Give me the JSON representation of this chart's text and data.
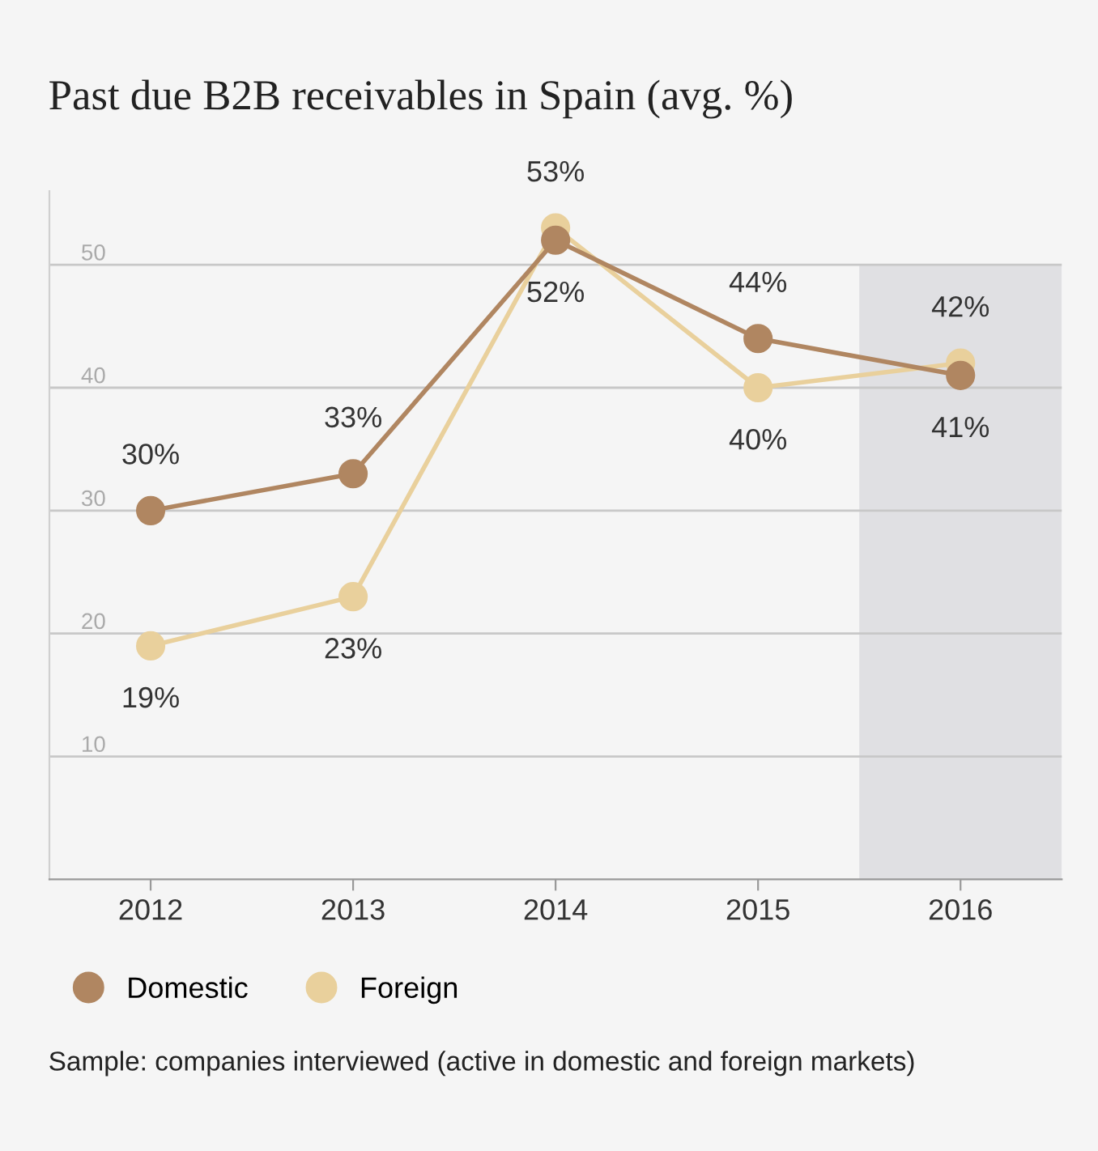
{
  "chart_data": {
    "type": "line",
    "title": "Past due B2B receivables in Spain (avg. %)",
    "x": [
      2012,
      2013,
      2014,
      2015,
      2016
    ],
    "series": [
      {
        "name": "Domestic",
        "color": "#b08661",
        "values": [
          30,
          33,
          52,
          44,
          41
        ],
        "value_labels": [
          "30%",
          "33%",
          "52%",
          "44%",
          "41%"
        ]
      },
      {
        "name": "Foreign",
        "color": "#e9d09c",
        "values": [
          19,
          23,
          53,
          40,
          42
        ],
        "value_labels": [
          "19%",
          "23%",
          "53%",
          "40%",
          "42%"
        ]
      }
    ],
    "xlim": [
      2011.5,
      2016.5
    ],
    "xticks": [
      2012,
      2013,
      2014,
      2015,
      2016
    ],
    "ylim": [
      0,
      56
    ],
    "yticks": [
      10,
      20,
      30,
      40,
      50
    ],
    "bands": [
      {
        "axis": "x",
        "from": 2015.5,
        "to": 2016.5,
        "color": "#e0e0e3"
      }
    ],
    "grid": "y",
    "legend": "bottom left",
    "marker": "circle",
    "line_style": "solid",
    "annotations": [
      "Sample: companies interviewed (active in domestic and foreign markets)"
    ]
  }
}
